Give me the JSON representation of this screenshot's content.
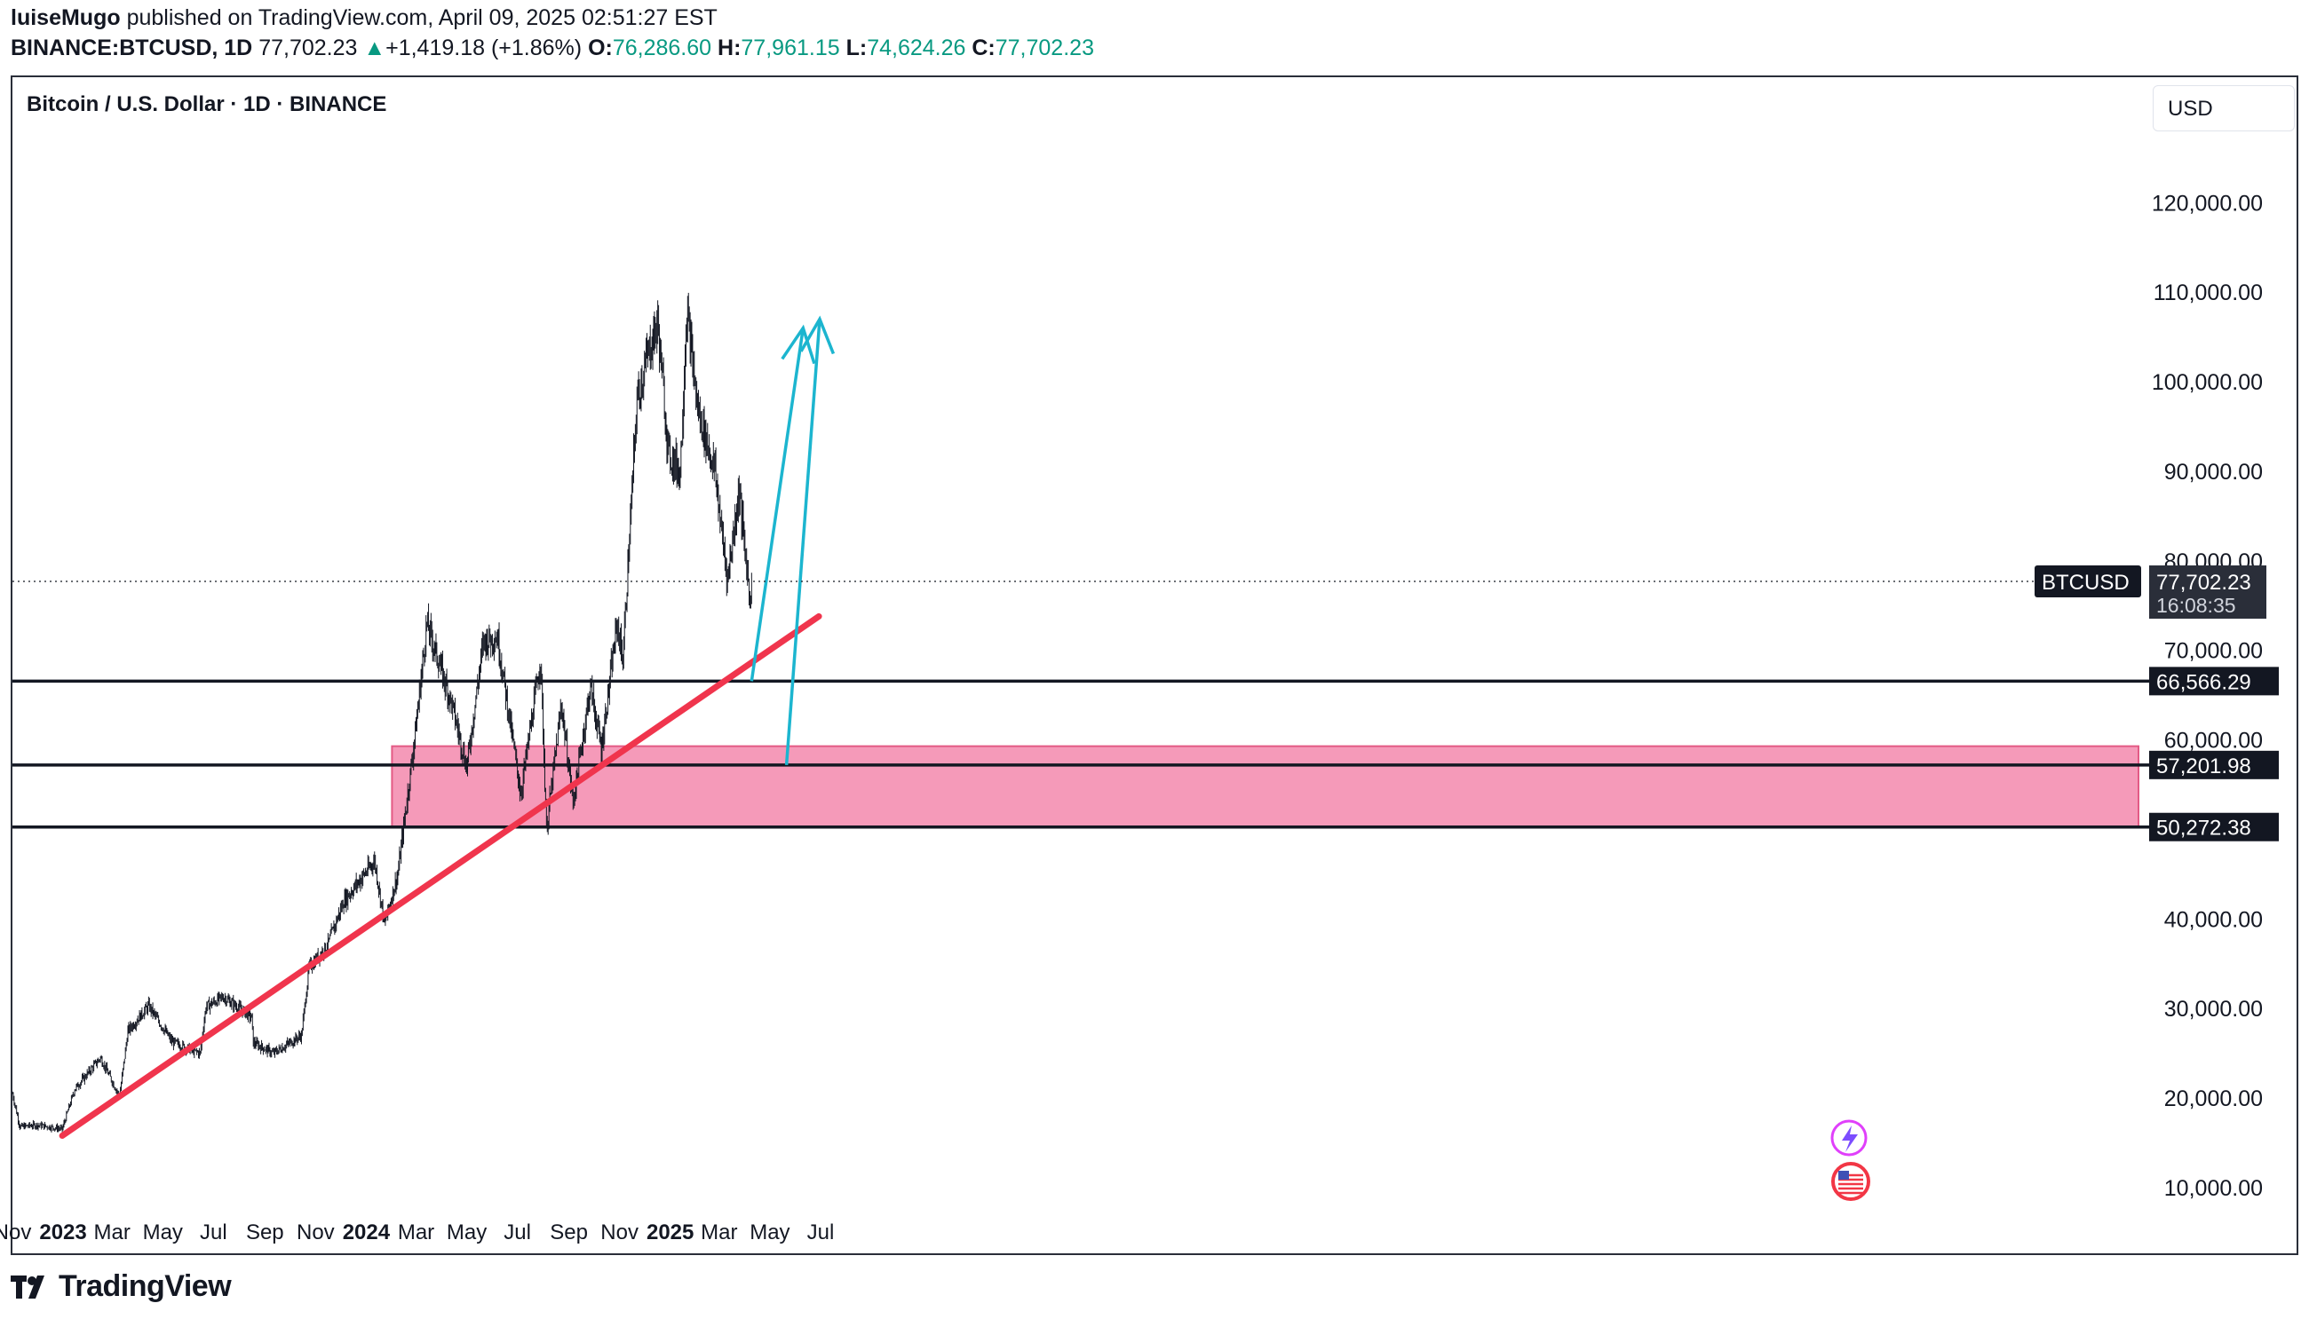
{
  "header": {
    "publisher": "luiseMugo",
    "published_text": "published on TradingView.com, April 09, 2025 02:51:27 EST",
    "symbol": "BINANCE:BTCUSD, 1D",
    "last": "77,702.23",
    "change": "+1,419.18 (+1.86%)",
    "open_label": "O:",
    "open": "76,286.60",
    "high_label": "H:",
    "high": "77,961.15",
    "low_label": "L:",
    "low": "74,624.26",
    "close_label": "C:",
    "close": "77,702.23"
  },
  "chart_title": "Bitcoin / U.S. Dollar · 1D · BINANCE",
  "currency_button": "USD",
  "footer_brand": "TradingView",
  "colors": {
    "trendline": "#f0354d",
    "zone": "#f48fb1",
    "arrow": "#1cb5cf",
    "candle": "#131722"
  },
  "chart_data": {
    "type": "candlestick",
    "title": "Bitcoin / U.S. Dollar · 1D · BINANCE",
    "ylabel": "USD",
    "ylim": [
      5000,
      140000
    ],
    "y_ticks": [
      "10,000.00",
      "20,000.00",
      "30,000.00",
      "40,000.00",
      "50,000.00",
      "60,000.00",
      "70,000.00",
      "80,000.00",
      "90,000.00",
      "100,000.00",
      "110,000.00",
      "120,000.00"
    ],
    "y_tick_values": [
      10000,
      20000,
      30000,
      40000,
      50000,
      60000,
      70000,
      80000,
      90000,
      100000,
      110000,
      120000
    ],
    "x_ticks": [
      "Nov",
      "2023",
      "Mar",
      "May",
      "Jul",
      "Sep",
      "Nov",
      "2024",
      "Mar",
      "May",
      "Jul",
      "Sep",
      "Nov",
      "2025",
      "Mar",
      "May",
      "Jul"
    ],
    "x_tick_dates": [
      "2022-11-01",
      "2023-01-01",
      "2023-03-01",
      "2023-05-01",
      "2023-07-01",
      "2023-09-01",
      "2023-11-01",
      "2024-01-01",
      "2024-03-01",
      "2024-05-01",
      "2024-07-01",
      "2024-09-01",
      "2024-11-01",
      "2025-01-01",
      "2025-03-01",
      "2025-05-01",
      "2025-07-01"
    ],
    "x_tick_bold": [
      false,
      true,
      false,
      false,
      false,
      false,
      false,
      true,
      false,
      false,
      false,
      false,
      false,
      true,
      false,
      false,
      false
    ],
    "price_path": [
      [
        "2022-11-01",
        20500
      ],
      [
        "2022-11-10",
        16800
      ],
      [
        "2022-12-01",
        17000
      ],
      [
        "2022-12-31",
        16550
      ],
      [
        "2023-01-15",
        21000
      ],
      [
        "2023-02-15",
        24500
      ],
      [
        "2023-03-10",
        20200
      ],
      [
        "2023-03-20",
        27500
      ],
      [
        "2023-04-14",
        30300
      ],
      [
        "2023-05-12",
        26300
      ],
      [
        "2023-06-15",
        25000
      ],
      [
        "2023-06-22",
        30200
      ],
      [
        "2023-07-13",
        31300
      ],
      [
        "2023-08-16",
        29000
      ],
      [
        "2023-08-18",
        26200
      ],
      [
        "2023-09-11",
        25000
      ],
      [
        "2023-10-15",
        27000
      ],
      [
        "2023-10-24",
        34500
      ],
      [
        "2023-11-15",
        37000
      ],
      [
        "2023-12-05",
        42000
      ],
      [
        "2024-01-11",
        46500
      ],
      [
        "2024-01-23",
        39500
      ],
      [
        "2024-02-08",
        45000
      ],
      [
        "2024-02-28",
        60000
      ],
      [
        "2024-03-14",
        73000
      ],
      [
        "2024-04-13",
        64000
      ],
      [
        "2024-05-01",
        57000
      ],
      [
        "2024-05-21",
        71000
      ],
      [
        "2024-06-07",
        71500
      ],
      [
        "2024-07-05",
        54000
      ],
      [
        "2024-07-29",
        69000
      ],
      [
        "2024-08-05",
        50000
      ],
      [
        "2024-08-23",
        64000
      ],
      [
        "2024-09-06",
        53000
      ],
      [
        "2024-09-27",
        66000
      ],
      [
        "2024-10-10",
        59000
      ],
      [
        "2024-10-29",
        73000
      ],
      [
        "2024-11-05",
        69000
      ],
      [
        "2024-11-22",
        98000
      ],
      [
        "2024-12-05",
        103000
      ],
      [
        "2024-12-17",
        106500
      ],
      [
        "2024-12-30",
        92000
      ],
      [
        "2025-01-13",
        90000
      ],
      [
        "2025-01-21",
        108000
      ],
      [
        "2025-02-03",
        97000
      ],
      [
        "2025-02-24",
        90000
      ],
      [
        "2025-03-03",
        84000
      ],
      [
        "2025-03-11",
        78000
      ],
      [
        "2025-03-25",
        88000
      ],
      [
        "2025-03-31",
        82000
      ],
      [
        "2025-04-07",
        76000
      ],
      [
        "2025-04-09",
        77702
      ]
    ],
    "horizontal_levels": [
      {
        "value": 66566.29,
        "label": "66,566.29"
      },
      {
        "value": 57201.98,
        "label": "57,201.98"
      },
      {
        "value": 50272.38,
        "label": "50,272.38"
      }
    ],
    "zone": {
      "from_date": "2024-02-01",
      "low": 50272.38,
      "high": 59300
    },
    "trendline": {
      "start": [
        "2022-12-31",
        15800
      ],
      "end": [
        "2025-06-29",
        73800
      ]
    },
    "arrows": [
      {
        "start": [
          "2025-04-09",
          66566
        ],
        "end": [
          "2025-06-10",
          106000
        ]
      },
      {
        "start": [
          "2025-05-21",
          57200
        ],
        "end": [
          "2025-06-30",
          107000
        ]
      }
    ],
    "last_price": {
      "value": 77702.23,
      "symbol_label": "BTCUSD",
      "price_label": "77,702.23",
      "countdown": "16:08:35"
    }
  }
}
